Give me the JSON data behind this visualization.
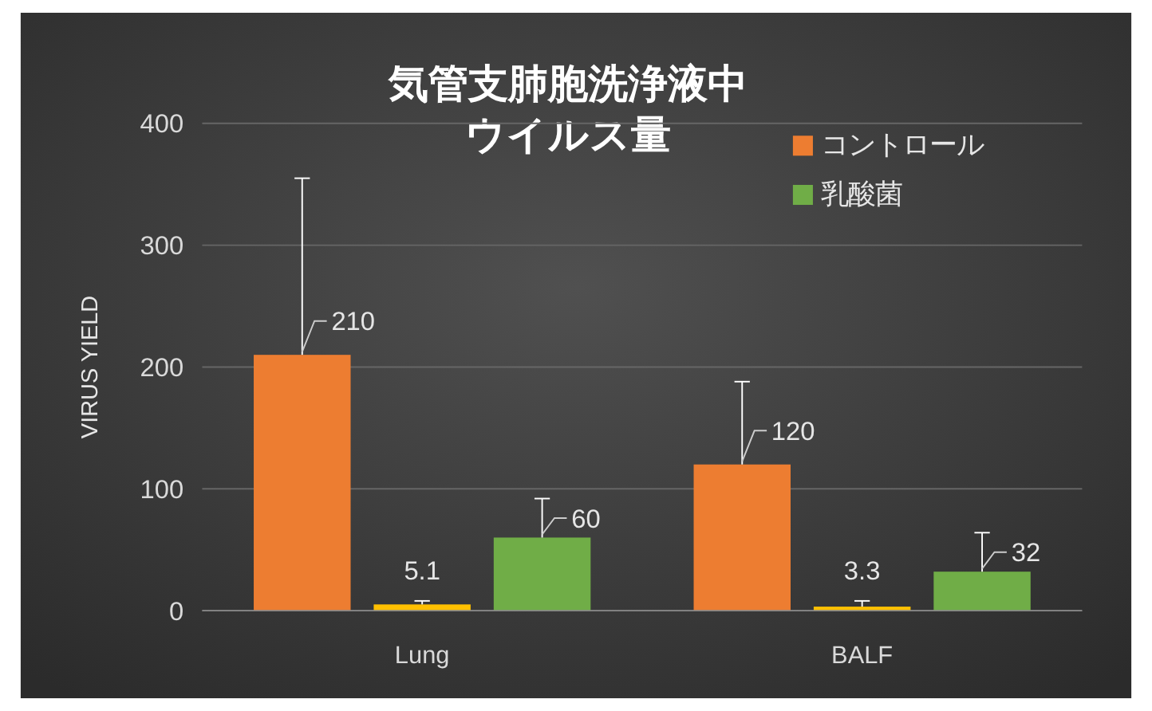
{
  "chart_data": {
    "type": "bar",
    "title": "気管支肺胞洗浄液中ウイルス量",
    "ylabel": "VIRUS YIELD",
    "categories": [
      "Lung",
      "BALF"
    ],
    "series": [
      {
        "name": "コントロール",
        "color": "#ed7d31",
        "values": [
          210,
          120
        ],
        "errors": [
          [
            210,
            355
          ],
          [
            120,
            188
          ]
        ]
      },
      {
        "color": "#ffc000",
        "values": [
          5.1,
          3.3
        ],
        "errors": [
          [
            5.1,
            8
          ],
          [
            3.3,
            8
          ]
        ]
      },
      {
        "name": "乳酸菌",
        "color": "#70ad47",
        "values": [
          60,
          32
        ],
        "errors": [
          [
            60,
            92
          ],
          [
            32,
            64
          ]
        ]
      }
    ],
    "ylim": [
      0,
      400
    ],
    "yticks": [
      0,
      100,
      200,
      300,
      400
    ],
    "grid": "y",
    "legend": "top right",
    "data_labels": true
  }
}
